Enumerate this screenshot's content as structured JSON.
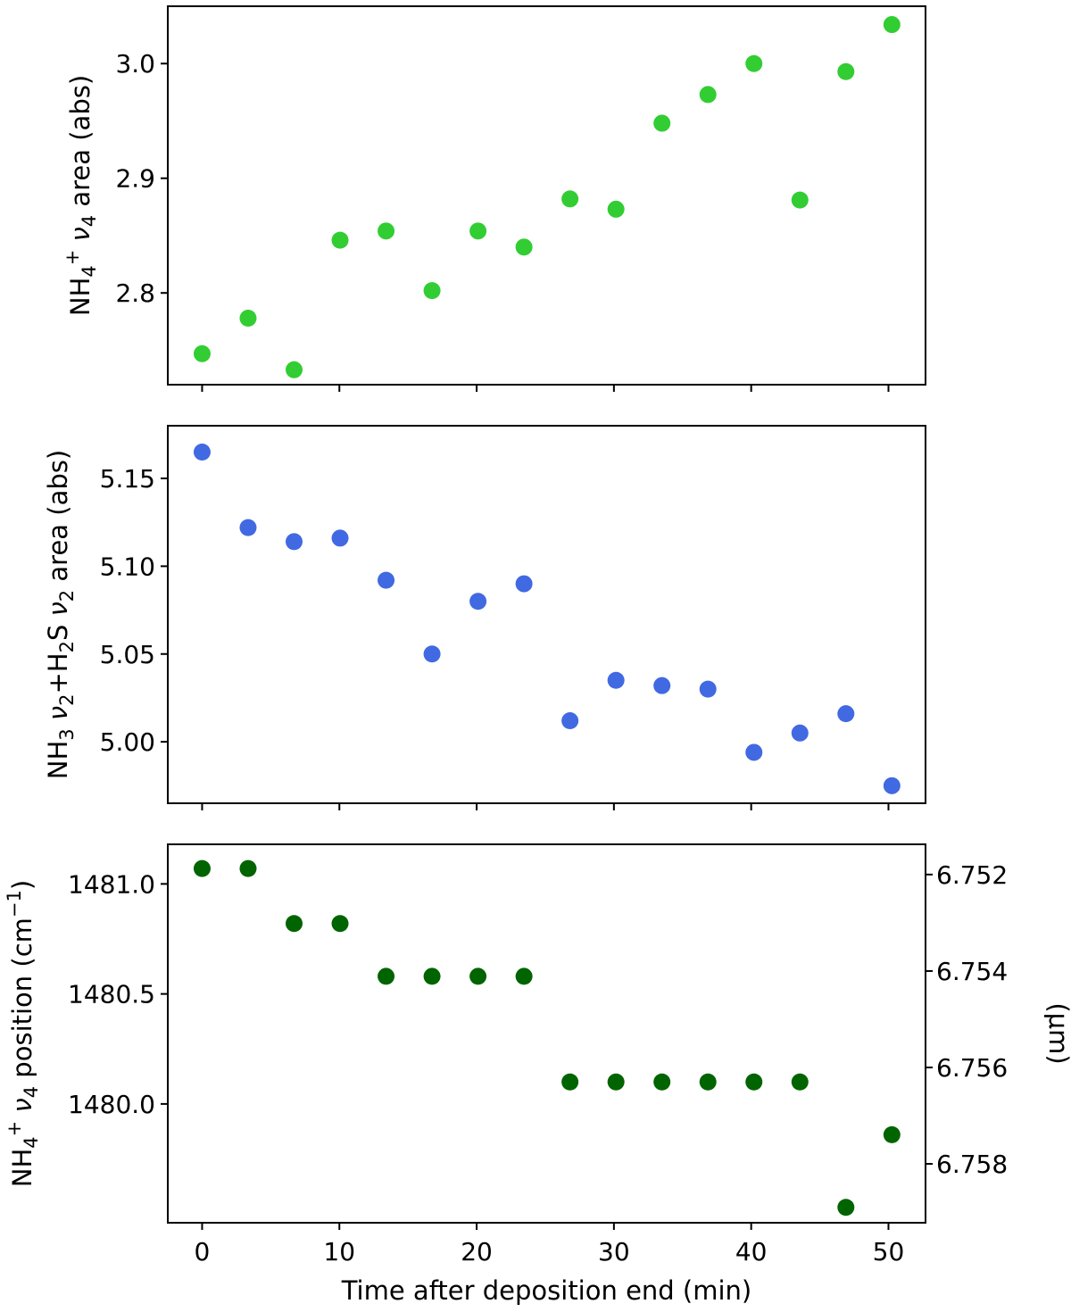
{
  "chart_data": [
    {
      "type": "scatter",
      "ylabel": "NH4+ ν4 area (abs)",
      "ylabel_parts": {
        "base": "NH",
        "sub": "4",
        "sup": "+",
        "greek": "ν",
        "greek_sub": "4",
        "rest": "area (abs)"
      },
      "xlim": [
        -2.5,
        52.7
      ],
      "ylim": [
        2.72,
        3.05
      ],
      "yticks": [
        2.8,
        2.9,
        3.0
      ],
      "ytick_labels": [
        "2.8",
        "2.9",
        "3.0"
      ],
      "xticks": [
        0,
        10,
        20,
        30,
        40,
        50
      ],
      "color": "#32cd32",
      "x": [
        0,
        3.35,
        6.7,
        10.05,
        13.4,
        16.75,
        20.1,
        23.45,
        26.8,
        30.15,
        33.5,
        36.85,
        40.2,
        43.55,
        46.9,
        50.25
      ],
      "y": [
        2.747,
        2.778,
        2.733,
        2.846,
        2.854,
        2.802,
        2.854,
        2.84,
        2.882,
        2.873,
        2.948,
        2.973,
        3.0,
        2.881,
        2.993,
        3.034
      ]
    },
    {
      "type": "scatter",
      "ylabel": "NH3 ν2+H2S ν2 area (abs)",
      "ylabel_parts": {
        "a": "NH",
        "a_sub": "3",
        "g1": "ν",
        "g1_sub": "2",
        "b": "+H",
        "b_sub": "2",
        "c": "S ",
        "g2": "ν",
        "g2_sub": "2",
        "rest": "area (abs)"
      },
      "xlim": [
        -2.5,
        52.7
      ],
      "ylim": [
        4.965,
        5.18
      ],
      "yticks": [
        5.0,
        5.05,
        5.1,
        5.15
      ],
      "ytick_labels": [
        "5.00",
        "5.05",
        "5.10",
        "5.15"
      ],
      "xticks": [
        0,
        10,
        20,
        30,
        40,
        50
      ],
      "color": "#4169e1",
      "x": [
        0,
        3.35,
        6.7,
        10.05,
        13.4,
        16.75,
        20.1,
        23.45,
        26.8,
        30.15,
        33.5,
        36.85,
        40.2,
        43.55,
        46.9,
        50.25
      ],
      "y": [
        5.165,
        5.122,
        5.114,
        5.116,
        5.092,
        5.05,
        5.08,
        5.09,
        5.012,
        5.035,
        5.032,
        5.03,
        4.994,
        5.005,
        5.016,
        4.975
      ]
    },
    {
      "type": "scatter",
      "ylabel": "NH4+ ν4 position (cm−1)",
      "ylabel_parts": {
        "base": "NH",
        "sub": "4",
        "sup": "+",
        "greek": "ν",
        "greek_sub": "4",
        "rest": "position (cm",
        "unit_sup": "−1",
        "close": ")"
      },
      "ylabel_right": "(μm)",
      "xlabel": "Time after deposition end (min)",
      "xlim": [
        -2.5,
        52.7
      ],
      "ylim": [
        1479.46,
        1481.18
      ],
      "yticks": [
        1480.0,
        1480.5,
        1481.0
      ],
      "ytick_labels": [
        "1480.0",
        "1480.5",
        "1481.0"
      ],
      "right_ticks_um": [
        6.752,
        6.754,
        6.756,
        6.758
      ],
      "right_tick_labels": [
        "6.752",
        "6.754",
        "6.756",
        "6.758"
      ],
      "xticks": [
        0,
        10,
        20,
        30,
        40,
        50
      ],
      "xtick_labels": [
        "0",
        "10",
        "20",
        "30",
        "40",
        "50"
      ],
      "color": "#006400",
      "x": [
        0,
        3.35,
        6.7,
        10.05,
        13.4,
        16.75,
        20.1,
        23.45,
        26.8,
        30.15,
        33.5,
        36.85,
        40.2,
        43.55,
        46.9,
        50.25
      ],
      "y": [
        1481.07,
        1481.07,
        1480.82,
        1480.82,
        1480.58,
        1480.58,
        1480.58,
        1480.58,
        1480.1,
        1480.1,
        1480.1,
        1480.1,
        1480.1,
        1480.1,
        1479.53,
        1479.86
      ]
    }
  ]
}
